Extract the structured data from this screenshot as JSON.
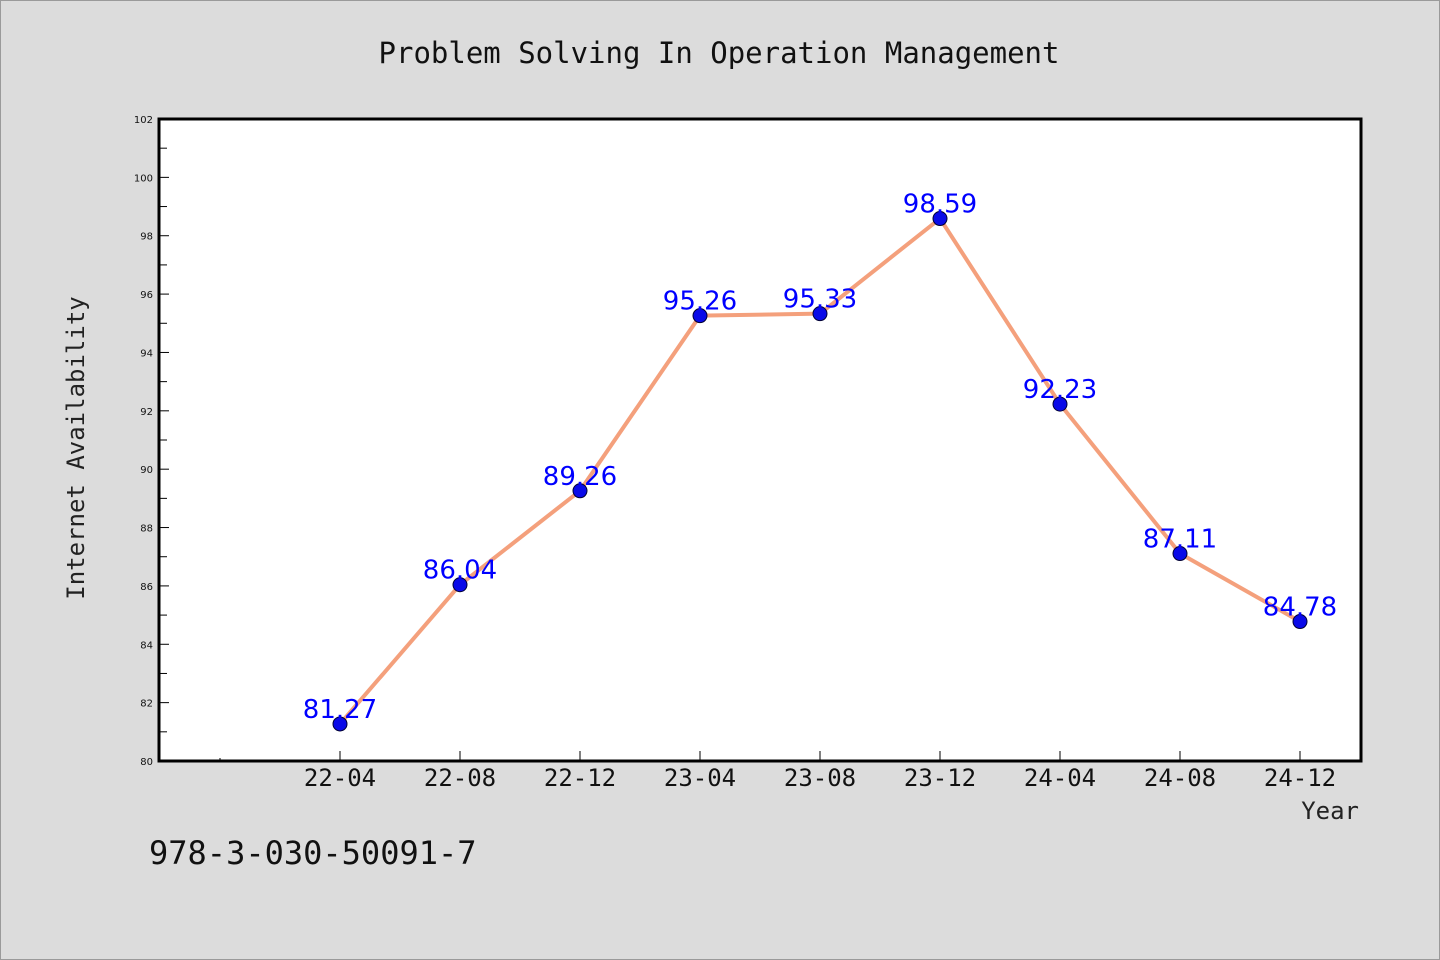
{
  "chart_data": {
    "type": "line",
    "title": "Problem Solving In Operation Management",
    "xlabel": "Year",
    "ylabel": "Internet Availability",
    "categories": [
      "22-04",
      "22-08",
      "22-12",
      "23-04",
      "23-08",
      "23-12",
      "24-04",
      "24-08",
      "24-12"
    ],
    "values": [
      81.27,
      86.04,
      89.26,
      95.26,
      95.33,
      98.59,
      92.23,
      87.11,
      84.78
    ],
    "data_labels": [
      "81.27",
      "86.04",
      "89.26",
      "95.26",
      "95.33",
      "98.59",
      "92.23",
      "87.11",
      "84.78"
    ],
    "ylim": [
      80,
      102
    ],
    "yticks": [
      80,
      82,
      84,
      86,
      88,
      90,
      92,
      94,
      96,
      98,
      100,
      102
    ],
    "grid": false,
    "line_color": "#f4a07c",
    "marker_color": "#0a0ae8",
    "label_color": "#0000ff",
    "background_color": "#dcdcdc",
    "plot_background": "#ffffff"
  },
  "annotation": "978-3-030-50091-7"
}
